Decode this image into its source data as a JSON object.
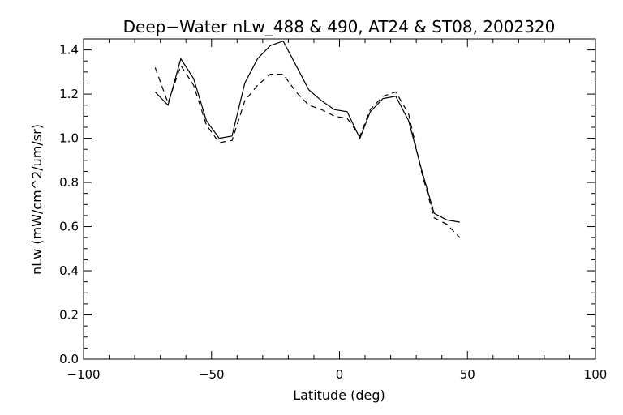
{
  "chart_data": {
    "type": "line",
    "title": "Deep−Water nLw_488 & 490, AT24 & ST08, 2002320",
    "xlabel": "Latitude (deg)",
    "ylabel": "nLw (mW/cm^2/um/sr)",
    "xlim": [
      -100,
      100
    ],
    "ylim": [
      0.0,
      1.45
    ],
    "xticks": [
      -100,
      -50,
      0,
      50,
      100
    ],
    "xtick_labels": [
      "−100",
      "−50",
      "0",
      "50",
      "100"
    ],
    "yticks": [
      0.0,
      0.2,
      0.4,
      0.6,
      0.8,
      1.0,
      1.2,
      1.4
    ],
    "ytick_labels": [
      "0.0",
      "0.2",
      "0.4",
      "0.6",
      "0.8",
      "1.0",
      "1.2",
      "1.4"
    ],
    "grid": false,
    "series": [
      {
        "style": "solid",
        "x": [
          -72,
          -67,
          -62,
          -57,
          -52,
          -47,
          -42,
          -37,
          -32,
          -27,
          -22,
          -17,
          -12,
          -7,
          -2,
          3,
          8,
          12,
          17,
          22,
          27,
          32,
          37,
          42,
          47
        ],
        "y": [
          1.21,
          1.15,
          1.36,
          1.27,
          1.08,
          1.0,
          1.01,
          1.25,
          1.36,
          1.42,
          1.44,
          1.33,
          1.22,
          1.17,
          1.13,
          1.12,
          1.0,
          1.12,
          1.18,
          1.19,
          1.08,
          0.86,
          0.66,
          0.63,
          0.62
        ]
      },
      {
        "style": "dashed",
        "x": [
          -72,
          -67,
          -62,
          -57,
          -52,
          -47,
          -42,
          -37,
          -32,
          -27,
          -22,
          -17,
          -12,
          -7,
          -2,
          3,
          8,
          12,
          17,
          22,
          27,
          32,
          37,
          42,
          47
        ],
        "y": [
          1.32,
          1.16,
          1.33,
          1.24,
          1.06,
          0.98,
          0.99,
          1.17,
          1.24,
          1.29,
          1.29,
          1.21,
          1.15,
          1.13,
          1.1,
          1.09,
          1.01,
          1.13,
          1.19,
          1.21,
          1.11,
          0.85,
          0.64,
          0.61,
          0.55
        ]
      }
    ]
  }
}
